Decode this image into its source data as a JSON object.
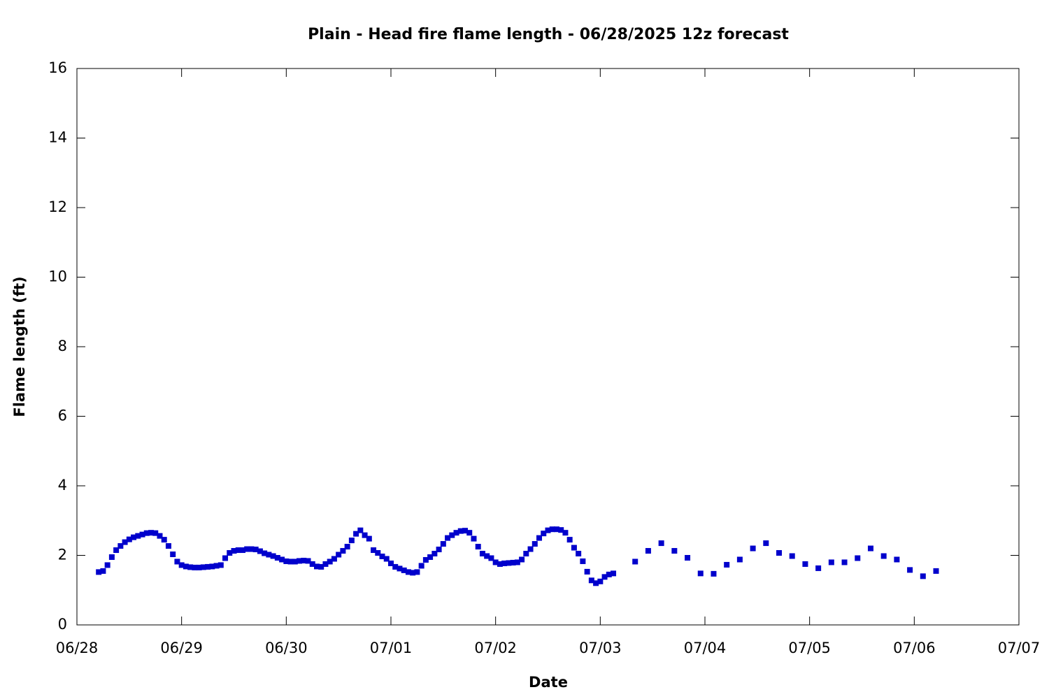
{
  "chart_data": {
    "type": "scatter",
    "title": "Plain - Head fire flame length - 06/28/2025 12z forecast",
    "x_label": "Date",
    "y_label": "Flame length (ft)",
    "series": [
      {
        "name": null,
        "color": "#0000cc",
        "x": [
          5,
          6,
          7,
          8,
          9,
          10,
          11,
          12,
          13,
          14,
          15,
          16,
          17,
          18,
          19,
          20,
          21,
          22,
          23,
          24,
          25,
          26,
          27,
          28,
          29,
          30,
          31,
          32,
          33,
          34,
          35,
          36,
          37,
          38,
          39,
          40,
          41,
          42,
          43,
          44,
          45,
          46,
          47,
          48,
          49,
          50,
          51,
          52,
          53,
          54,
          55,
          56,
          57,
          58,
          59,
          60,
          61,
          62,
          63,
          64,
          65,
          66,
          67,
          68,
          69,
          70,
          71,
          72,
          73,
          74,
          75,
          76,
          77,
          78,
          79,
          80,
          81,
          82,
          83,
          84,
          85,
          86,
          87,
          88,
          89,
          90,
          91,
          92,
          93,
          94,
          95,
          96,
          97,
          98,
          99,
          100,
          101,
          102,
          103,
          104,
          105,
          106,
          107,
          108,
          109,
          110,
          111,
          112,
          113,
          114,
          115,
          116,
          117,
          118,
          119,
          120,
          121,
          122,
          123,
          128,
          131,
          134,
          137,
          140,
          143,
          146,
          149,
          152,
          155,
          158,
          161,
          164,
          167,
          170,
          173,
          176,
          179,
          182,
          185,
          188,
          191,
          194,
          197
        ],
        "values": [
          1.52,
          1.55,
          1.72,
          1.95,
          2.15,
          2.27,
          2.38,
          2.46,
          2.52,
          2.56,
          2.6,
          2.64,
          2.65,
          2.64,
          2.56,
          2.45,
          2.27,
          2.03,
          1.82,
          1.72,
          1.68,
          1.66,
          1.65,
          1.65,
          1.66,
          1.67,
          1.68,
          1.7,
          1.72,
          1.92,
          2.07,
          2.13,
          2.15,
          2.15,
          2.18,
          2.18,
          2.17,
          2.12,
          2.06,
          2.02,
          1.98,
          1.93,
          1.88,
          1.83,
          1.82,
          1.82,
          1.84,
          1.85,
          1.84,
          1.75,
          1.68,
          1.67,
          1.75,
          1.82,
          1.9,
          2.02,
          2.13,
          2.25,
          2.43,
          2.62,
          2.72,
          2.58,
          2.48,
          2.15,
          2.07,
          1.97,
          1.9,
          1.77,
          1.67,
          1.62,
          1.57,
          1.52,
          1.5,
          1.52,
          1.7,
          1.87,
          1.95,
          2.05,
          2.17,
          2.33,
          2.5,
          2.58,
          2.65,
          2.7,
          2.71,
          2.65,
          2.48,
          2.25,
          2.05,
          1.98,
          1.92,
          1.8,
          1.75,
          1.77,
          1.78,
          1.79,
          1.8,
          1.88,
          2.05,
          2.18,
          2.33,
          2.5,
          2.63,
          2.72,
          2.75,
          2.75,
          2.73,
          2.65,
          2.45,
          2.22,
          2.05,
          1.83,
          1.53,
          1.28,
          1.2,
          1.25,
          1.38,
          1.45,
          1.48,
          1.82,
          2.13,
          2.35,
          2.13,
          1.93,
          1.48,
          1.47,
          1.73,
          1.88,
          2.2,
          2.35,
          2.07,
          1.98,
          1.75,
          1.63,
          1.8,
          1.8,
          1.92,
          2.2,
          1.98,
          1.88,
          1.58,
          1.4,
          1.55
        ]
      }
    ],
    "xlim": [
      0,
      216
    ],
    "xticks": [
      {
        "value": 0,
        "label": "06/28"
      },
      {
        "value": 24,
        "label": "06/29"
      },
      {
        "value": 48,
        "label": "06/30"
      },
      {
        "value": 72,
        "label": "07/01"
      },
      {
        "value": 96,
        "label": "07/02"
      },
      {
        "value": 120,
        "label": "07/03"
      },
      {
        "value": 144,
        "label": "07/04"
      },
      {
        "value": 168,
        "label": "07/05"
      },
      {
        "value": 192,
        "label": "07/06"
      },
      {
        "value": 216,
        "label": "07/07"
      }
    ],
    "ylim": [
      0,
      16
    ],
    "yticks": [
      0,
      2,
      4,
      6,
      8,
      10,
      12,
      14,
      16
    ],
    "grid": false
  }
}
